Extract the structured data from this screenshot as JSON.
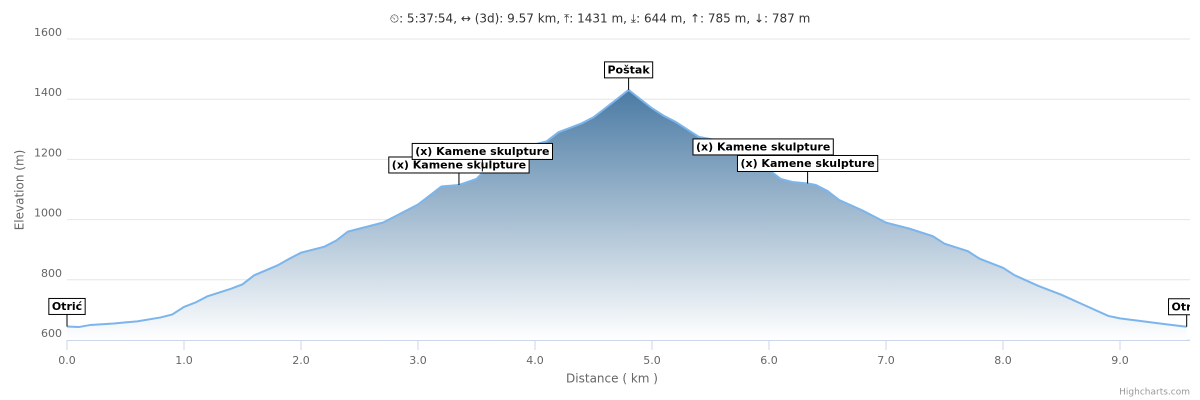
{
  "chart_data": {
    "type": "area",
    "title": "⏲: 5:37:54, ↔ (3d): 9.57 km, ⤒: 1431 m, ⤓: 644 m, ↑: 785 m, ↓: 787 m",
    "x_label": "Distance ( km )",
    "y_label": "Elevation (m)",
    "credits": "Highcharts.com",
    "x": [
      0,
      0.1,
      0.2,
      0.4,
      0.6,
      0.8,
      0.9,
      1.0,
      1.1,
      1.2,
      1.4,
      1.5,
      1.6,
      1.8,
      1.9,
      2.0,
      2.2,
      2.3,
      2.4,
      2.5,
      2.7,
      2.8,
      3.0,
      3.1,
      3.2,
      3.35,
      3.5,
      3.6,
      3.7,
      3.8,
      3.9,
      4.0,
      4.1,
      4.2,
      4.4,
      4.5,
      4.6,
      4.7,
      4.8,
      4.9,
      5.0,
      5.1,
      5.2,
      5.3,
      5.4,
      5.6,
      5.8,
      5.9,
      6.0,
      6.1,
      6.2,
      6.33,
      6.4,
      6.5,
      6.6,
      6.8,
      7.0,
      7.2,
      7.4,
      7.5,
      7.7,
      7.8,
      8.0,
      8.1,
      8.3,
      8.5,
      8.7,
      8.9,
      9.0,
      9.2,
      9.4,
      9.57
    ],
    "series": [
      {
        "color": "#7cb5ec",
        "values": [
          645,
          643,
          650,
          655,
          662,
          675,
          685,
          710,
          725,
          745,
          770,
          785,
          815,
          848,
          870,
          890,
          910,
          930,
          960,
          970,
          990,
          1010,
          1050,
          1080,
          1110,
          1115,
          1135,
          1175,
          1200,
          1230,
          1245,
          1250,
          1260,
          1290,
          1320,
          1340,
          1370,
          1400,
          1431,
          1400,
          1370,
          1345,
          1325,
          1300,
          1275,
          1260,
          1230,
          1190,
          1165,
          1135,
          1125,
          1120,
          1115,
          1095,
          1065,
          1030,
          990,
          970,
          945,
          920,
          895,
          870,
          840,
          815,
          780,
          750,
          715,
          680,
          672,
          662,
          652,
          644
        ]
      }
    ],
    "annotations": [
      {
        "text": "Otrić",
        "x": 0,
        "y": 645
      },
      {
        "text": "(x) Kamene skulpture",
        "x": 3.35,
        "y": 1115
      },
      {
        "text": "(x) Kamene skulpture",
        "x": 3.55,
        "y": 1160
      },
      {
        "text": "Poštak",
        "x": 4.8,
        "y": 1431
      },
      {
        "text": "(x) Kamene skulpture",
        "x": 5.95,
        "y": 1175
      },
      {
        "text": "(x) Kamene skulpture",
        "x": 6.33,
        "y": 1120
      },
      {
        "text": "Otrić",
        "x": 9.57,
        "y": 644
      }
    ],
    "xlim": [
      0,
      9.57
    ],
    "ylim": [
      600,
      1600
    ],
    "xticks": [
      {
        "value": 0,
        "label": "0.0"
      },
      {
        "value": 1,
        "label": "1.0"
      },
      {
        "value": 2,
        "label": "2.0"
      },
      {
        "value": 3,
        "label": "3.0"
      },
      {
        "value": 4,
        "label": "4.0"
      },
      {
        "value": 5,
        "label": "5.0"
      },
      {
        "value": 6,
        "label": "6.0"
      },
      {
        "value": 7,
        "label": "7.0"
      },
      {
        "value": 8,
        "label": "8.0"
      },
      {
        "value": 9,
        "label": "9.0"
      }
    ],
    "yticks": [
      600,
      800,
      1000,
      1200,
      1400,
      1600
    ],
    "grid": true
  }
}
